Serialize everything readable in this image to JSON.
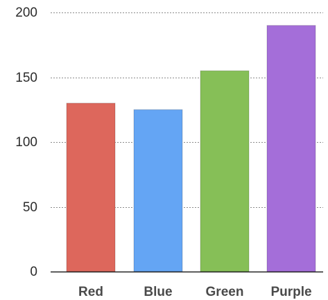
{
  "chart_data": {
    "type": "bar",
    "categories": [
      "Red",
      "Blue",
      "Green",
      "Purple"
    ],
    "values": [
      130,
      125,
      155,
      190
    ],
    "colors": [
      "#dd675c",
      "#64a5f4",
      "#86bf57",
      "#a46ed9"
    ],
    "ylim": [
      0,
      200
    ],
    "yticks": [
      0,
      50,
      100,
      150,
      200
    ],
    "ytick_labels": [
      "0",
      "50",
      "100",
      "150",
      "200"
    ],
    "grid": true,
    "grid_style": "dotted",
    "legend": "none"
  }
}
